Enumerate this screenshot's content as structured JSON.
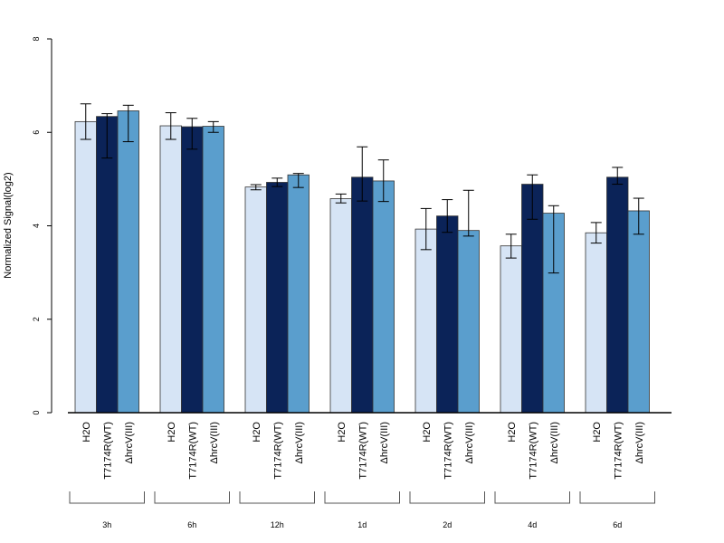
{
  "chart_data": {
    "type": "bar",
    "ylabel": "Normalized Signal(log2)",
    "ylim": [
      0,
      8
    ],
    "yticks": [
      "0",
      "2",
      "4",
      "6",
      "8"
    ],
    "bar_labels": [
      "H2O",
      "T7174R(WT)",
      "ΔhrcV(III)"
    ],
    "categories": [
      "3h",
      "6h",
      "12h",
      "1d",
      "2d",
      "4d",
      "6d"
    ],
    "colors": [
      "#d6e4f5",
      "#0b2358",
      "#5a9ecd"
    ],
    "series": [
      {
        "values": [
          6.23,
          6.14,
          4.83,
          4.58,
          3.93,
          3.57,
          3.85
        ],
        "err_low": [
          5.85,
          5.85,
          4.77,
          4.49,
          3.49,
          3.31,
          3.63
        ],
        "err_high": [
          6.61,
          6.42,
          4.88,
          4.68,
          4.37,
          3.82,
          4.07
        ]
      },
      {
        "values": [
          6.34,
          6.12,
          4.93,
          5.04,
          4.21,
          4.89,
          5.04
        ],
        "err_low": [
          5.45,
          5.64,
          4.84,
          4.53,
          3.86,
          4.14,
          4.89
        ],
        "err_high": [
          6.4,
          6.3,
          5.02,
          5.69,
          4.56,
          5.09,
          5.25
        ]
      },
      {
        "values": [
          6.46,
          6.13,
          5.09,
          4.96,
          3.9,
          4.27,
          4.32
        ],
        "err_low": [
          5.8,
          6.0,
          4.82,
          4.52,
          3.78,
          2.99,
          3.82
        ],
        "err_high": [
          6.58,
          6.23,
          5.12,
          5.41,
          4.76,
          4.43,
          4.59
        ]
      }
    ]
  }
}
